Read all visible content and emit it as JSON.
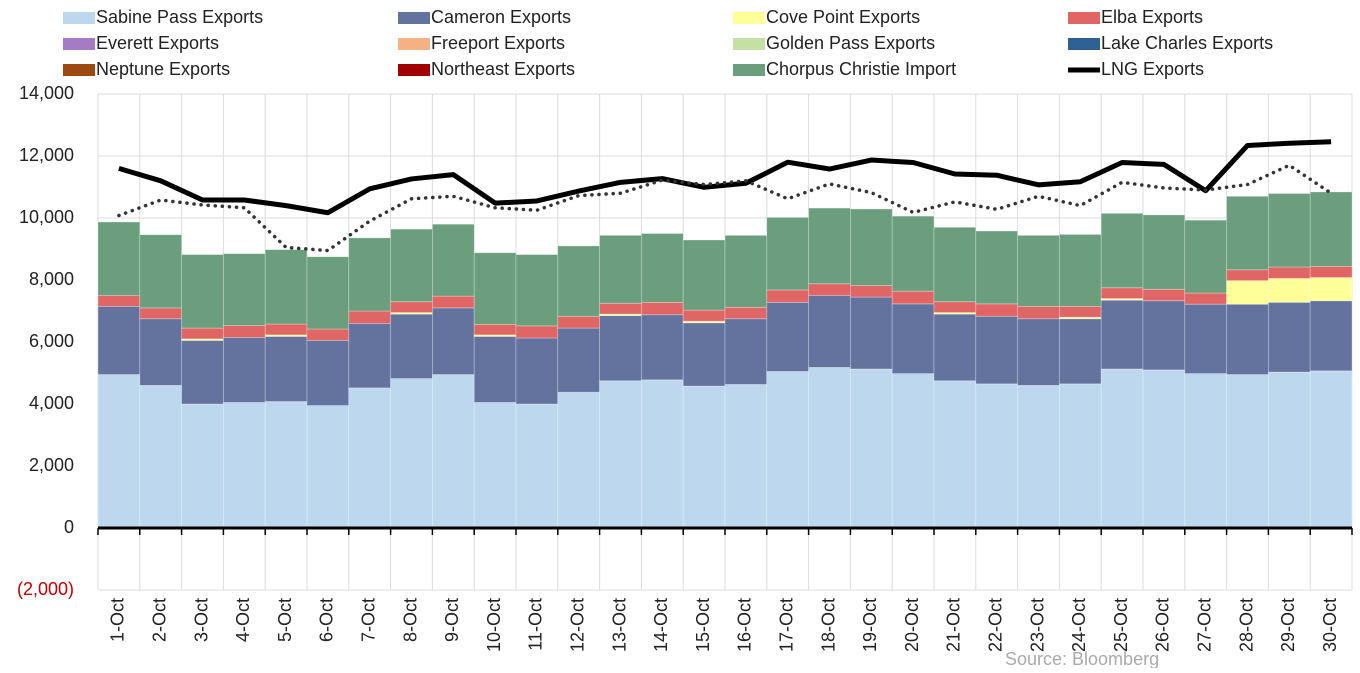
{
  "chart_data": {
    "type": "bar",
    "stacked": true,
    "grid": true,
    "categories": [
      "1-Oct",
      "2-Oct",
      "3-Oct",
      "4-Oct",
      "5-Oct",
      "6-Oct",
      "7-Oct",
      "8-Oct",
      "9-Oct",
      "10-Oct",
      "11-Oct",
      "12-Oct",
      "13-Oct",
      "14-Oct",
      "15-Oct",
      "16-Oct",
      "17-Oct",
      "18-Oct",
      "19-Oct",
      "20-Oct",
      "21-Oct",
      "22-Oct",
      "23-Oct",
      "24-Oct",
      "25-Oct",
      "26-Oct",
      "27-Oct",
      "28-Oct",
      "29-Oct",
      "30-Oct"
    ],
    "ylim": [
      -2000,
      14000
    ],
    "yticks": [
      {
        "value": -2000,
        "label": "(2,000)"
      },
      0,
      {
        "value": 2000,
        "label": "2,000"
      },
      {
        "value": 4000,
        "label": "4,000"
      },
      {
        "value": 6000,
        "label": "6,000"
      },
      {
        "value": 8000,
        "label": "8,000"
      },
      {
        "value": 10000,
        "label": "10,000"
      },
      {
        "value": 12000,
        "label": "12,000"
      },
      {
        "value": 14000,
        "label": "14,000"
      }
    ],
    "negative_tick_color": "#c00000",
    "series": [
      {
        "name": "Sabine Pass Exports",
        "color": "#bdd7ee",
        "values": [
          4950,
          4600,
          4000,
          4050,
          4080,
          3950,
          4520,
          4820,
          4950,
          4050,
          4000,
          4380,
          4750,
          4780,
          4580,
          4630,
          5050,
          5180,
          5130,
          4980,
          4750,
          4650,
          4600,
          4650,
          5130,
          5100,
          4980,
          4950,
          5030,
          5070
        ]
      },
      {
        "name": "Cameron Exports",
        "color": "#63739e",
        "values": [
          2200,
          2150,
          2050,
          2100,
          2100,
          2100,
          2080,
          2080,
          2150,
          2130,
          2130,
          2070,
          2100,
          2100,
          2040,
          2120,
          2230,
          2320,
          2320,
          2250,
          2150,
          2180,
          2150,
          2100,
          2220,
          2230,
          2240,
          2270,
          2250,
          2260
        ]
      },
      {
        "name": "Cove Point Exports",
        "color": "#ffff99",
        "values": [
          0,
          0,
          50,
          0,
          50,
          0,
          0,
          50,
          0,
          50,
          0,
          0,
          50,
          0,
          50,
          0,
          0,
          0,
          0,
          0,
          50,
          0,
          0,
          50,
          50,
          0,
          0,
          760,
          770,
          750
        ]
      },
      {
        "name": "Elba Exports",
        "color": "#e06666",
        "values": [
          350,
          350,
          350,
          380,
          350,
          370,
          400,
          350,
          380,
          340,
          390,
          380,
          350,
          400,
          360,
          370,
          400,
          380,
          370,
          410,
          350,
          400,
          400,
          350,
          350,
          370,
          360,
          350,
          370,
          360
        ]
      },
      {
        "name": "Everett Exports",
        "color": "#a57bc6",
        "values": [
          0,
          0,
          0,
          0,
          0,
          0,
          0,
          0,
          0,
          0,
          0,
          0,
          0,
          0,
          0,
          0,
          0,
          0,
          0,
          0,
          0,
          0,
          0,
          0,
          0,
          0,
          0,
          0,
          0,
          0
        ]
      },
      {
        "name": "Freeport Exports",
        "color": "#f4b183",
        "values": [
          0,
          0,
          0,
          0,
          0,
          0,
          0,
          0,
          0,
          0,
          0,
          0,
          0,
          0,
          0,
          0,
          0,
          0,
          0,
          0,
          0,
          0,
          0,
          0,
          0,
          0,
          0,
          0,
          0,
          0
        ]
      },
      {
        "name": "Golden Pass Exports",
        "color": "#c5e0a5",
        "values": [
          0,
          0,
          0,
          0,
          0,
          0,
          0,
          0,
          0,
          0,
          0,
          0,
          0,
          0,
          0,
          0,
          0,
          0,
          0,
          0,
          0,
          0,
          0,
          0,
          0,
          0,
          0,
          0,
          0,
          0
        ]
      },
      {
        "name": "Lake Charles Exports",
        "color": "#2e6095",
        "values": [
          0,
          0,
          0,
          0,
          0,
          0,
          0,
          0,
          0,
          0,
          0,
          0,
          0,
          0,
          0,
          0,
          0,
          0,
          0,
          0,
          0,
          0,
          0,
          0,
          0,
          0,
          0,
          0,
          0,
          0
        ]
      },
      {
        "name": "Neptune Exports",
        "color": "#9c4a12",
        "values": [
          0,
          0,
          0,
          0,
          0,
          0,
          0,
          0,
          0,
          0,
          0,
          0,
          0,
          0,
          0,
          0,
          0,
          0,
          0,
          0,
          0,
          0,
          0,
          0,
          0,
          0,
          0,
          0,
          0,
          0
        ]
      },
      {
        "name": "Northeast Exports",
        "color": "#a00000",
        "values": [
          0,
          0,
          0,
          0,
          0,
          0,
          0,
          0,
          0,
          0,
          0,
          0,
          0,
          0,
          0,
          0,
          0,
          0,
          0,
          0,
          0,
          0,
          0,
          0,
          0,
          0,
          0,
          0,
          0,
          0
        ]
      },
      {
        "name": "Chorpus Christie Import",
        "color": "#6a9e7d",
        "values": [
          2370,
          2360,
          2370,
          2320,
          2400,
          2330,
          2360,
          2340,
          2320,
          2310,
          2300,
          2270,
          2190,
          2220,
          2260,
          2320,
          2340,
          2440,
          2470,
          2420,
          2400,
          2350,
          2290,
          2320,
          2400,
          2400,
          2350,
          2370,
          2370,
          2400
        ]
      },
      {
        "name": "LNG Exports",
        "type": "line",
        "color": "#000000",
        "values": [
          11600,
          11200,
          10580,
          10580,
          10400,
          10170,
          10940,
          11260,
          11400,
          10480,
          10550,
          10870,
          11150,
          11270,
          10990,
          11120,
          11800,
          11580,
          11870,
          11790,
          11420,
          11380,
          11070,
          11170,
          11790,
          11730,
          10880,
          12340,
          12410,
          12460
        ]
      },
      {
        "type": "line",
        "style": "dotted",
        "color": "#333333",
        "values": [
          10080,
          10580,
          10420,
          10330,
          9050,
          8950,
          9900,
          10620,
          10700,
          10330,
          10250,
          10720,
          10800,
          11220,
          11080,
          11200,
          10620,
          11100,
          10820,
          10180,
          10520,
          10280,
          10700,
          10400,
          11150,
          10970,
          10900,
          11080,
          11700,
          10800
        ]
      }
    ],
    "source": "Source: Bloomberg"
  }
}
